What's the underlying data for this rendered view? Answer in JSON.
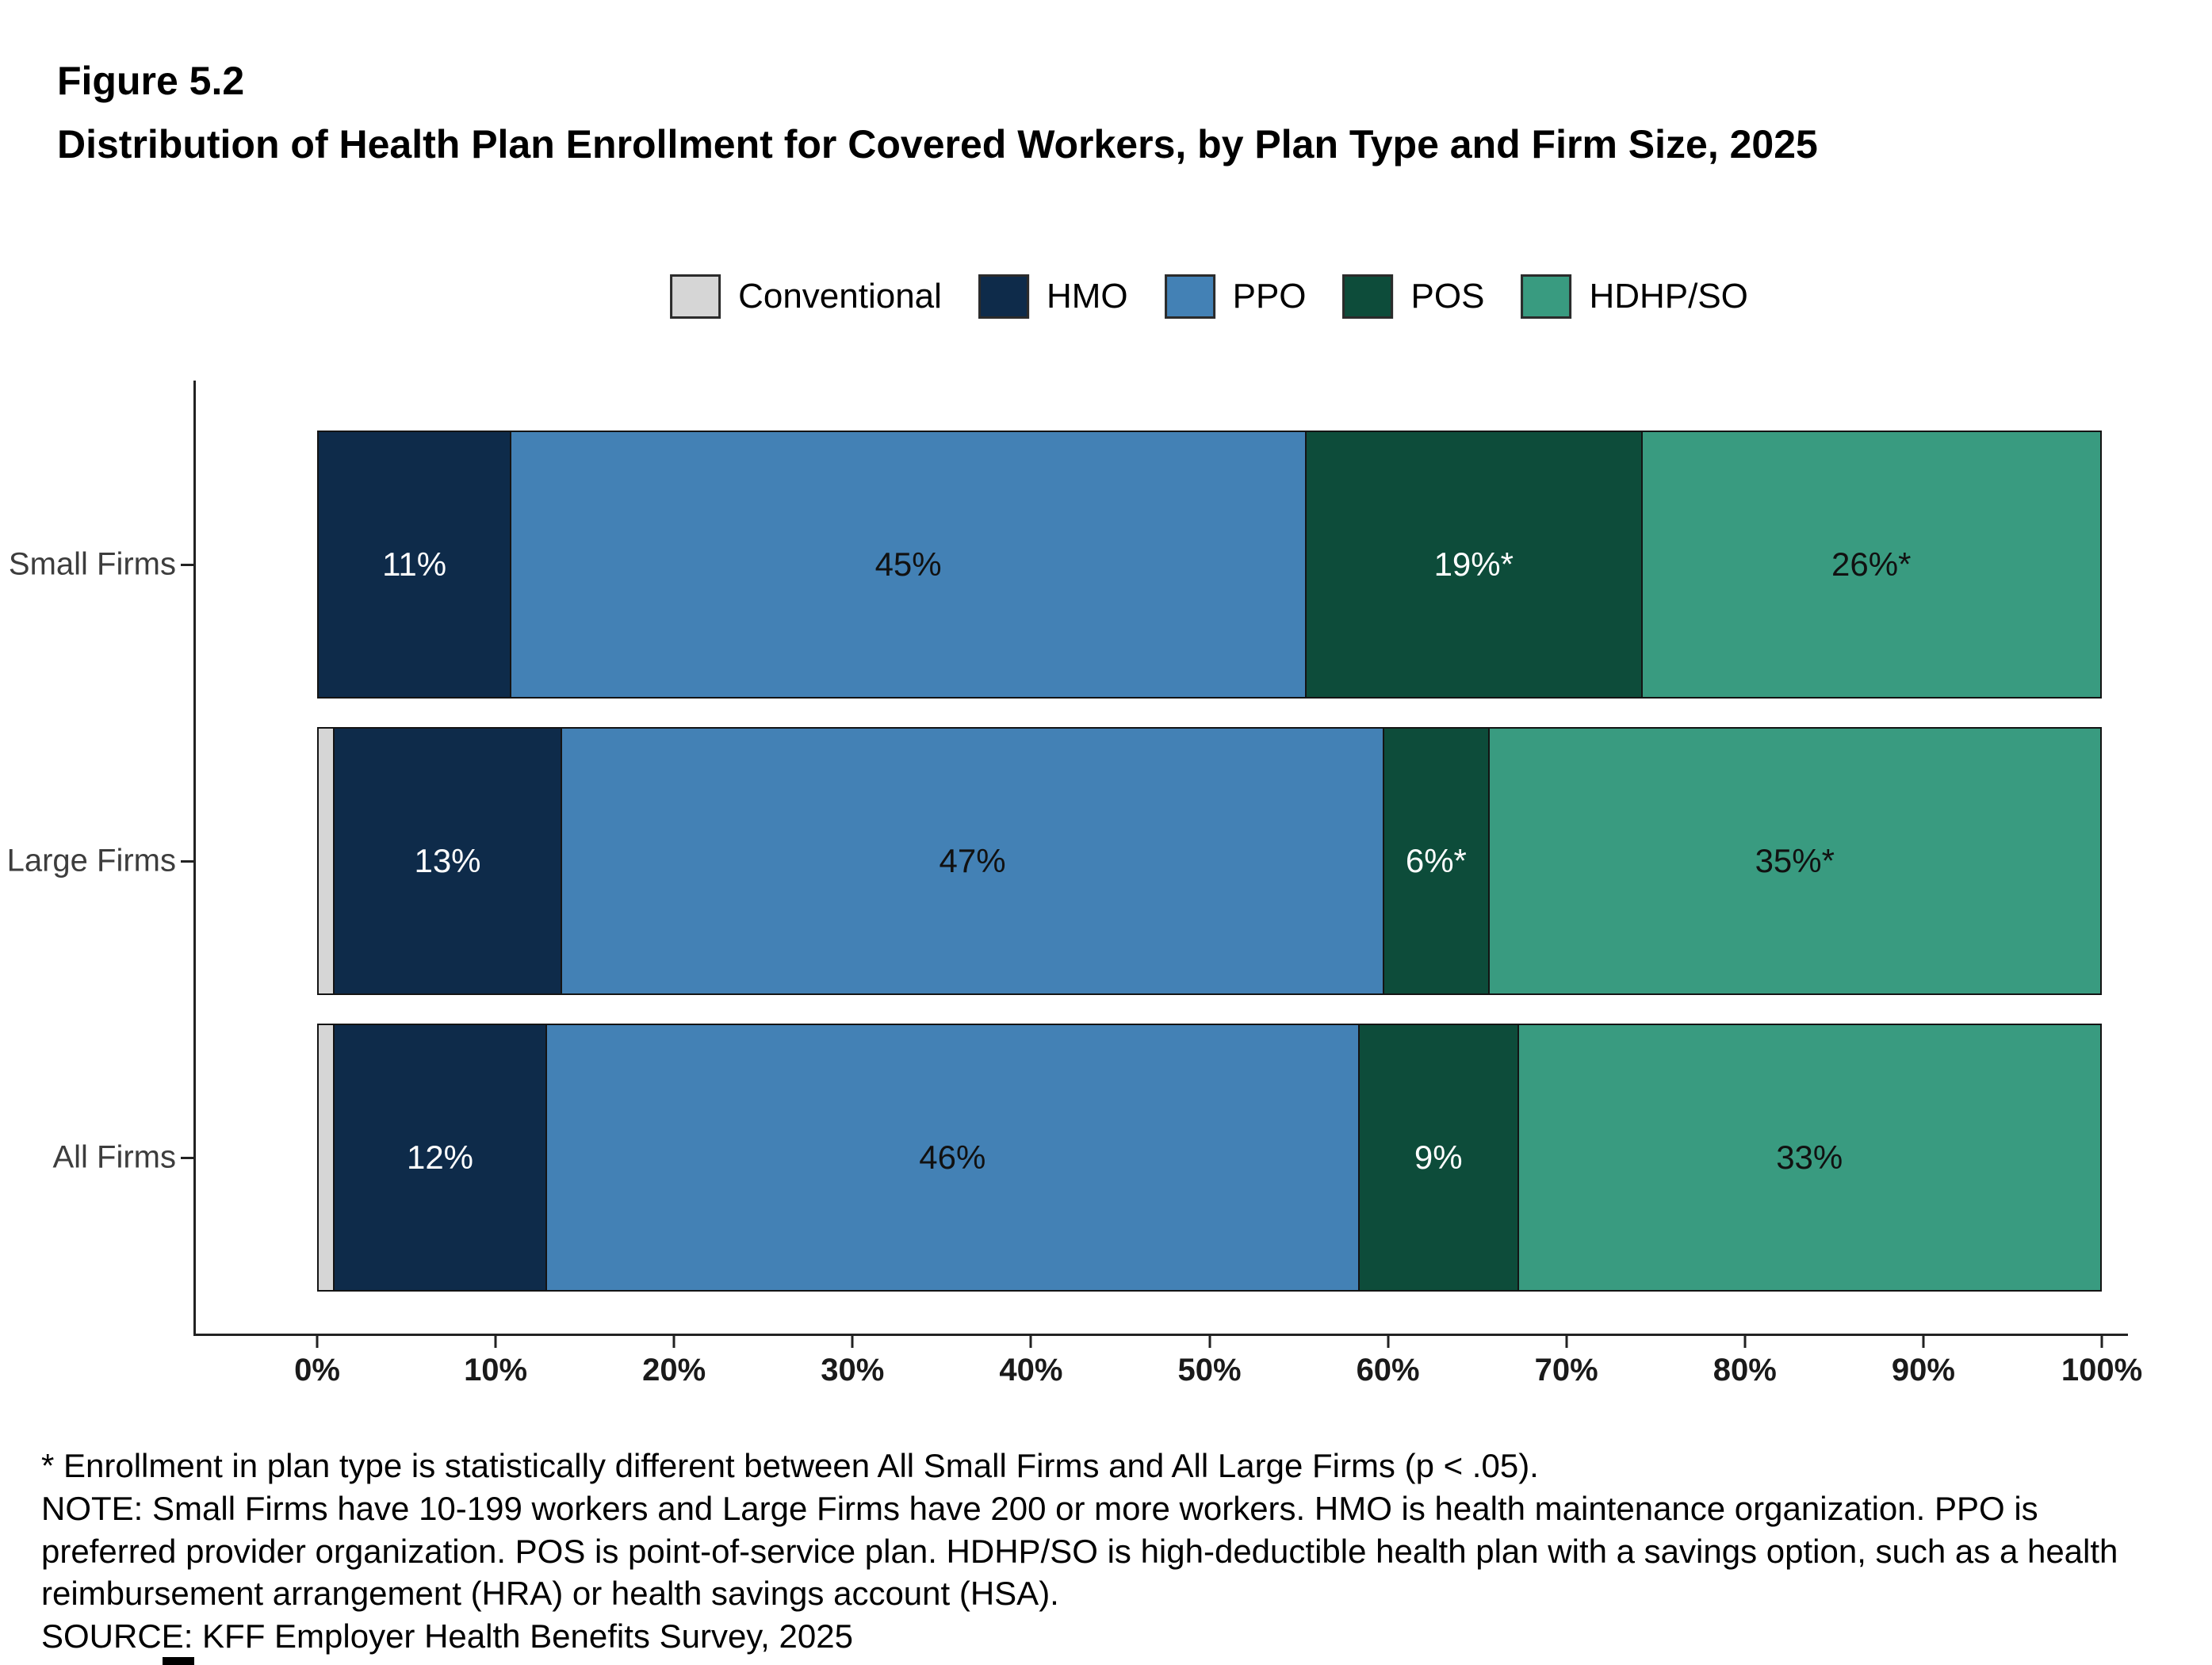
{
  "figure": {
    "label": "Figure 5.2",
    "title": "Distribution of Health Plan Enrollment for Covered Workers, by Plan Type and Firm Size, 2025"
  },
  "chart_data": {
    "type": "bar",
    "orientation": "horizontal",
    "stacked": true,
    "legend_position": "top",
    "grid": false,
    "xlim": [
      0,
      100
    ],
    "x_ticks": [
      "0%",
      "10%",
      "20%",
      "30%",
      "40%",
      "50%",
      "60%",
      "70%",
      "80%",
      "90%",
      "100%"
    ],
    "categories": [
      "Small Firms",
      "Large Firms",
      "All Firms"
    ],
    "series": [
      {
        "name": "Conventional",
        "color": "#d6d6d6",
        "label_color": "#111111",
        "values": [
          0,
          1,
          1
        ],
        "labels": [
          "",
          "",
          ""
        ]
      },
      {
        "name": "HMO",
        "color": "#0e2b4a",
        "label_color": "#ffffff",
        "values": [
          11,
          13,
          12
        ],
        "labels": [
          "11%",
          "13%",
          "12%"
        ]
      },
      {
        "name": "PPO",
        "color": "#4381b5",
        "label_color": "#111111",
        "values": [
          45,
          47,
          46
        ],
        "labels": [
          "45%",
          "47%",
          "46%"
        ]
      },
      {
        "name": "POS",
        "color": "#0d4c3a",
        "label_color": "#ffffff",
        "values": [
          19,
          6,
          9
        ],
        "labels": [
          "19%*",
          "6%*",
          "9%"
        ]
      },
      {
        "name": "HDHP/SO",
        "color": "#399b80",
        "label_color": "#111111",
        "values": [
          26,
          35,
          33
        ],
        "labels": [
          "26%*",
          "35%*",
          "33%"
        ]
      }
    ]
  },
  "footnotes": {
    "significance": "* Enrollment in plan type is statistically different between All Small Firms and All Large Firms (p < .05).",
    "note": "NOTE: Small Firms have 10-199 workers and Large Firms have 200 or more workers. HMO is health maintenance organization. PPO is preferred provider organization. POS is point-of-service plan. HDHP/SO is high-deductible health plan with a savings option, such as a health reimbursement arrangement (HRA) or health savings account (HSA).",
    "source": "SOURCE: KFF Employer Health Benefits Survey, 2025"
  }
}
